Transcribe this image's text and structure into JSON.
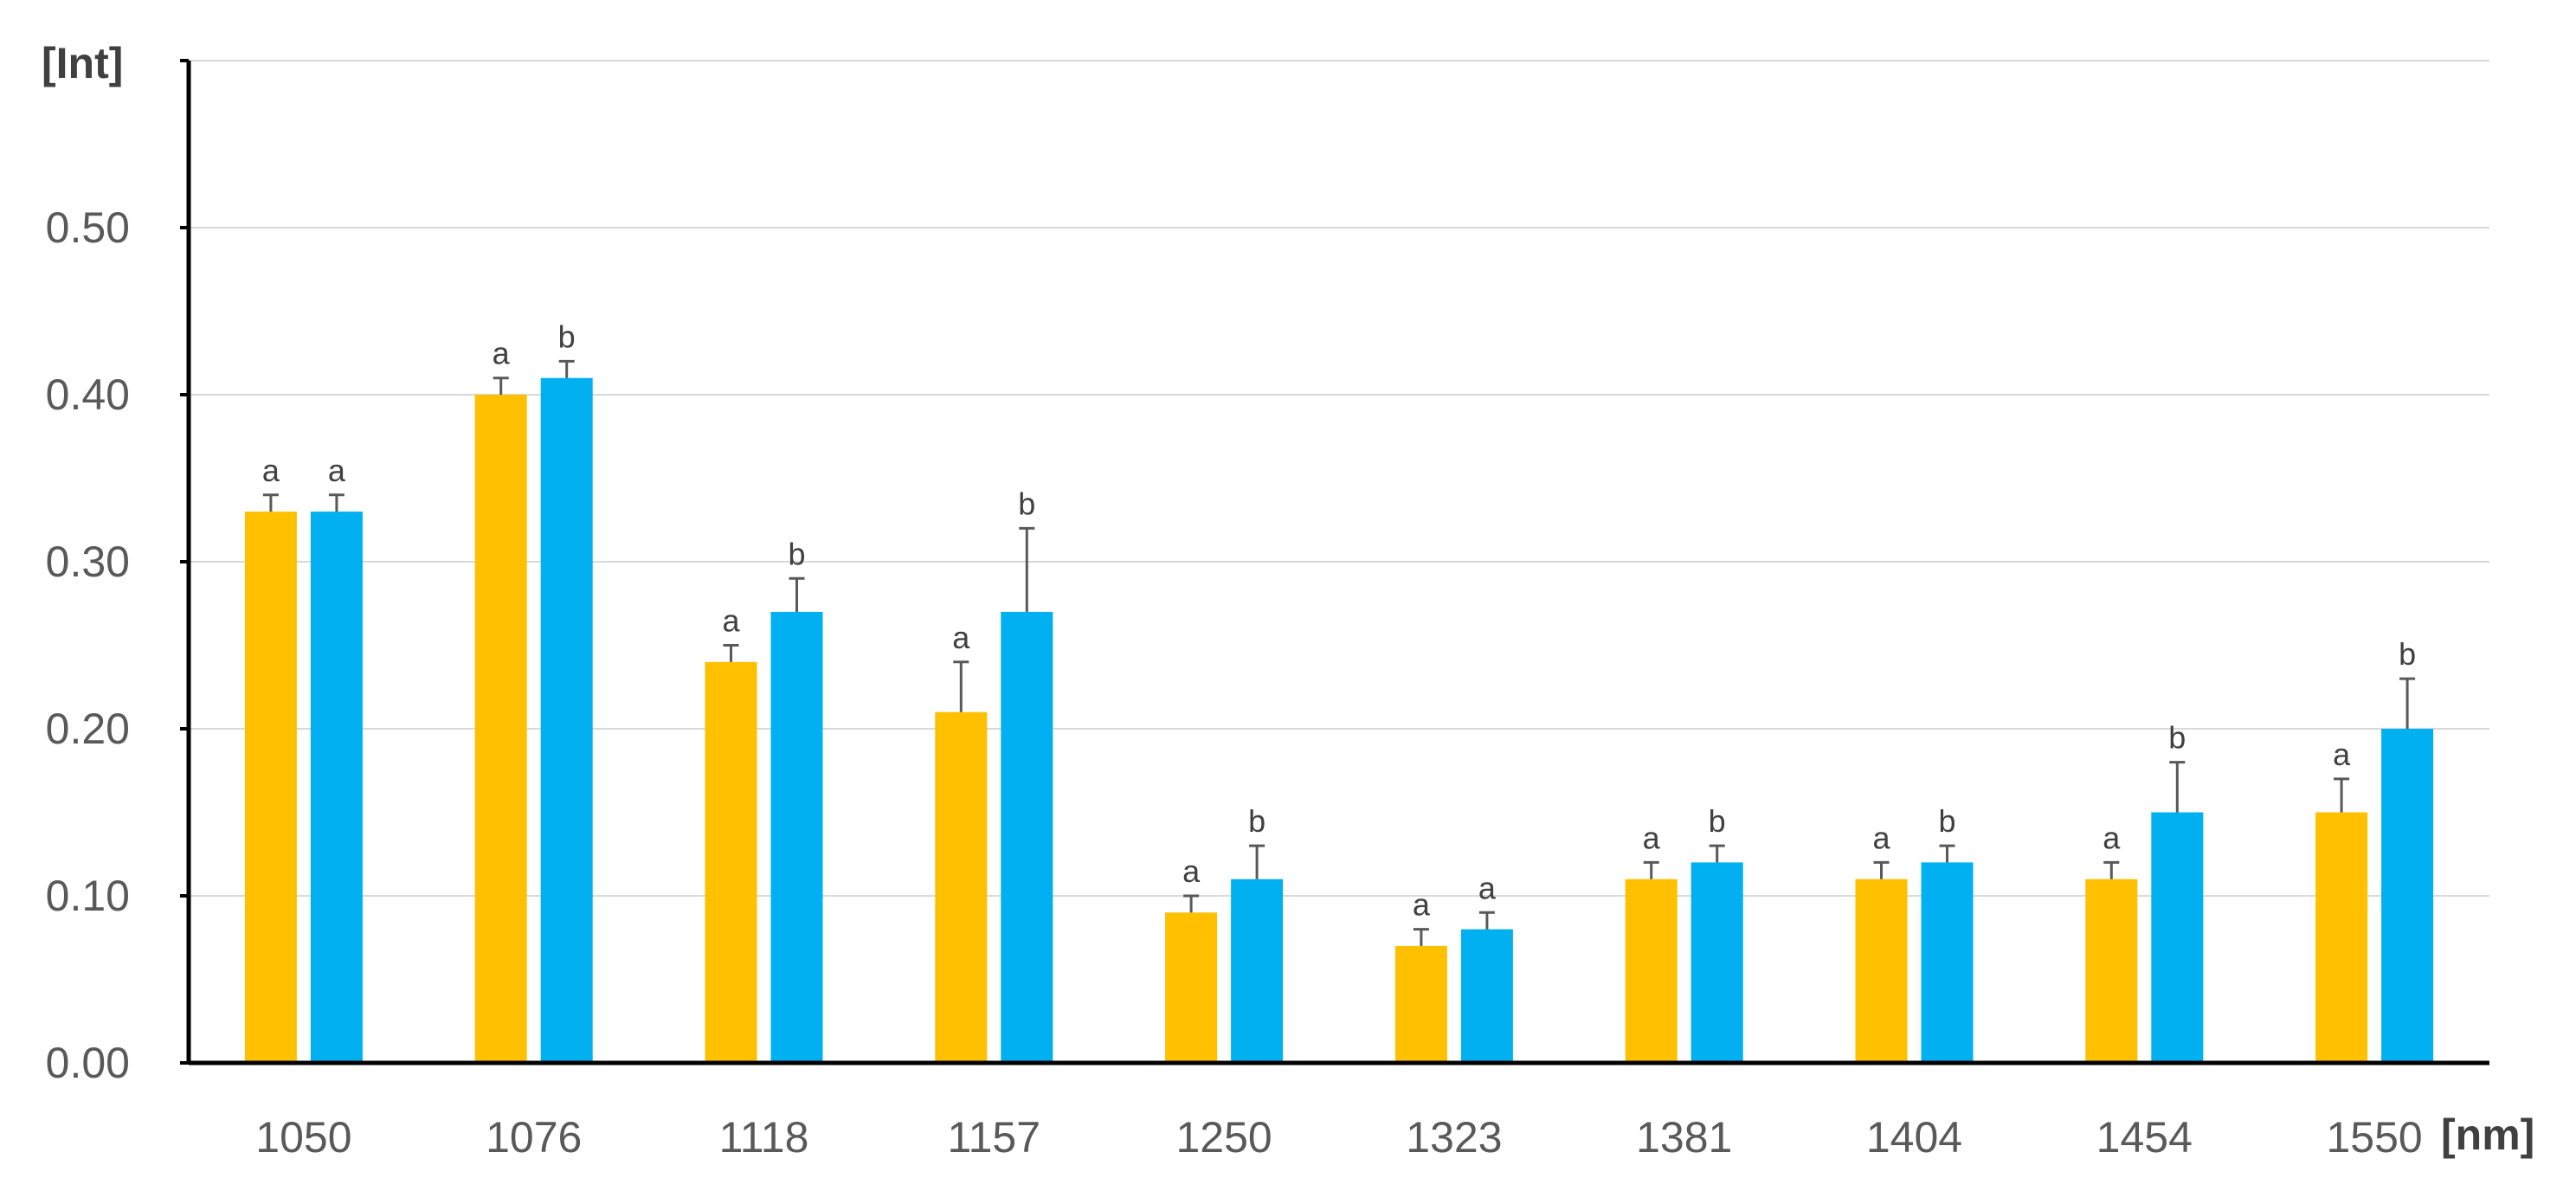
{
  "chart_data": {
    "type": "bar",
    "title": "",
    "ylabel": "[Int]",
    "xlabel": "[nm]",
    "ylim": [
      0,
      0.6
    ],
    "yticks": [
      "0.00",
      "0.10",
      "0.20",
      "0.30",
      "0.40",
      "0.50"
    ],
    "grid": true,
    "legend": "none",
    "categories": [
      "1050",
      "1076",
      "1118",
      "1157",
      "1250",
      "1323",
      "1381",
      "1404",
      "1454",
      "1550"
    ],
    "series": [
      {
        "color": "#FFC000",
        "values": [
          0.33,
          0.4,
          0.24,
          0.21,
          0.09,
          0.07,
          0.11,
          0.11,
          0.11,
          0.15
        ],
        "errors": [
          0.01,
          0.01,
          0.01,
          0.03,
          0.01,
          0.01,
          0.01,
          0.01,
          0.01,
          0.02
        ],
        "labels": [
          "a",
          "a",
          "a",
          "a",
          "a",
          "a",
          "a",
          "a",
          "a",
          "a"
        ]
      },
      {
        "color": "#00B0F0",
        "values": [
          0.33,
          0.41,
          0.27,
          0.27,
          0.11,
          0.08,
          0.12,
          0.12,
          0.15,
          0.2
        ],
        "errors": [
          0.01,
          0.01,
          0.02,
          0.05,
          0.02,
          0.01,
          0.01,
          0.01,
          0.03,
          0.03
        ],
        "labels": [
          "a",
          "b",
          "b",
          "b",
          "b",
          "a",
          "b",
          "b",
          "b",
          "b"
        ]
      }
    ]
  }
}
